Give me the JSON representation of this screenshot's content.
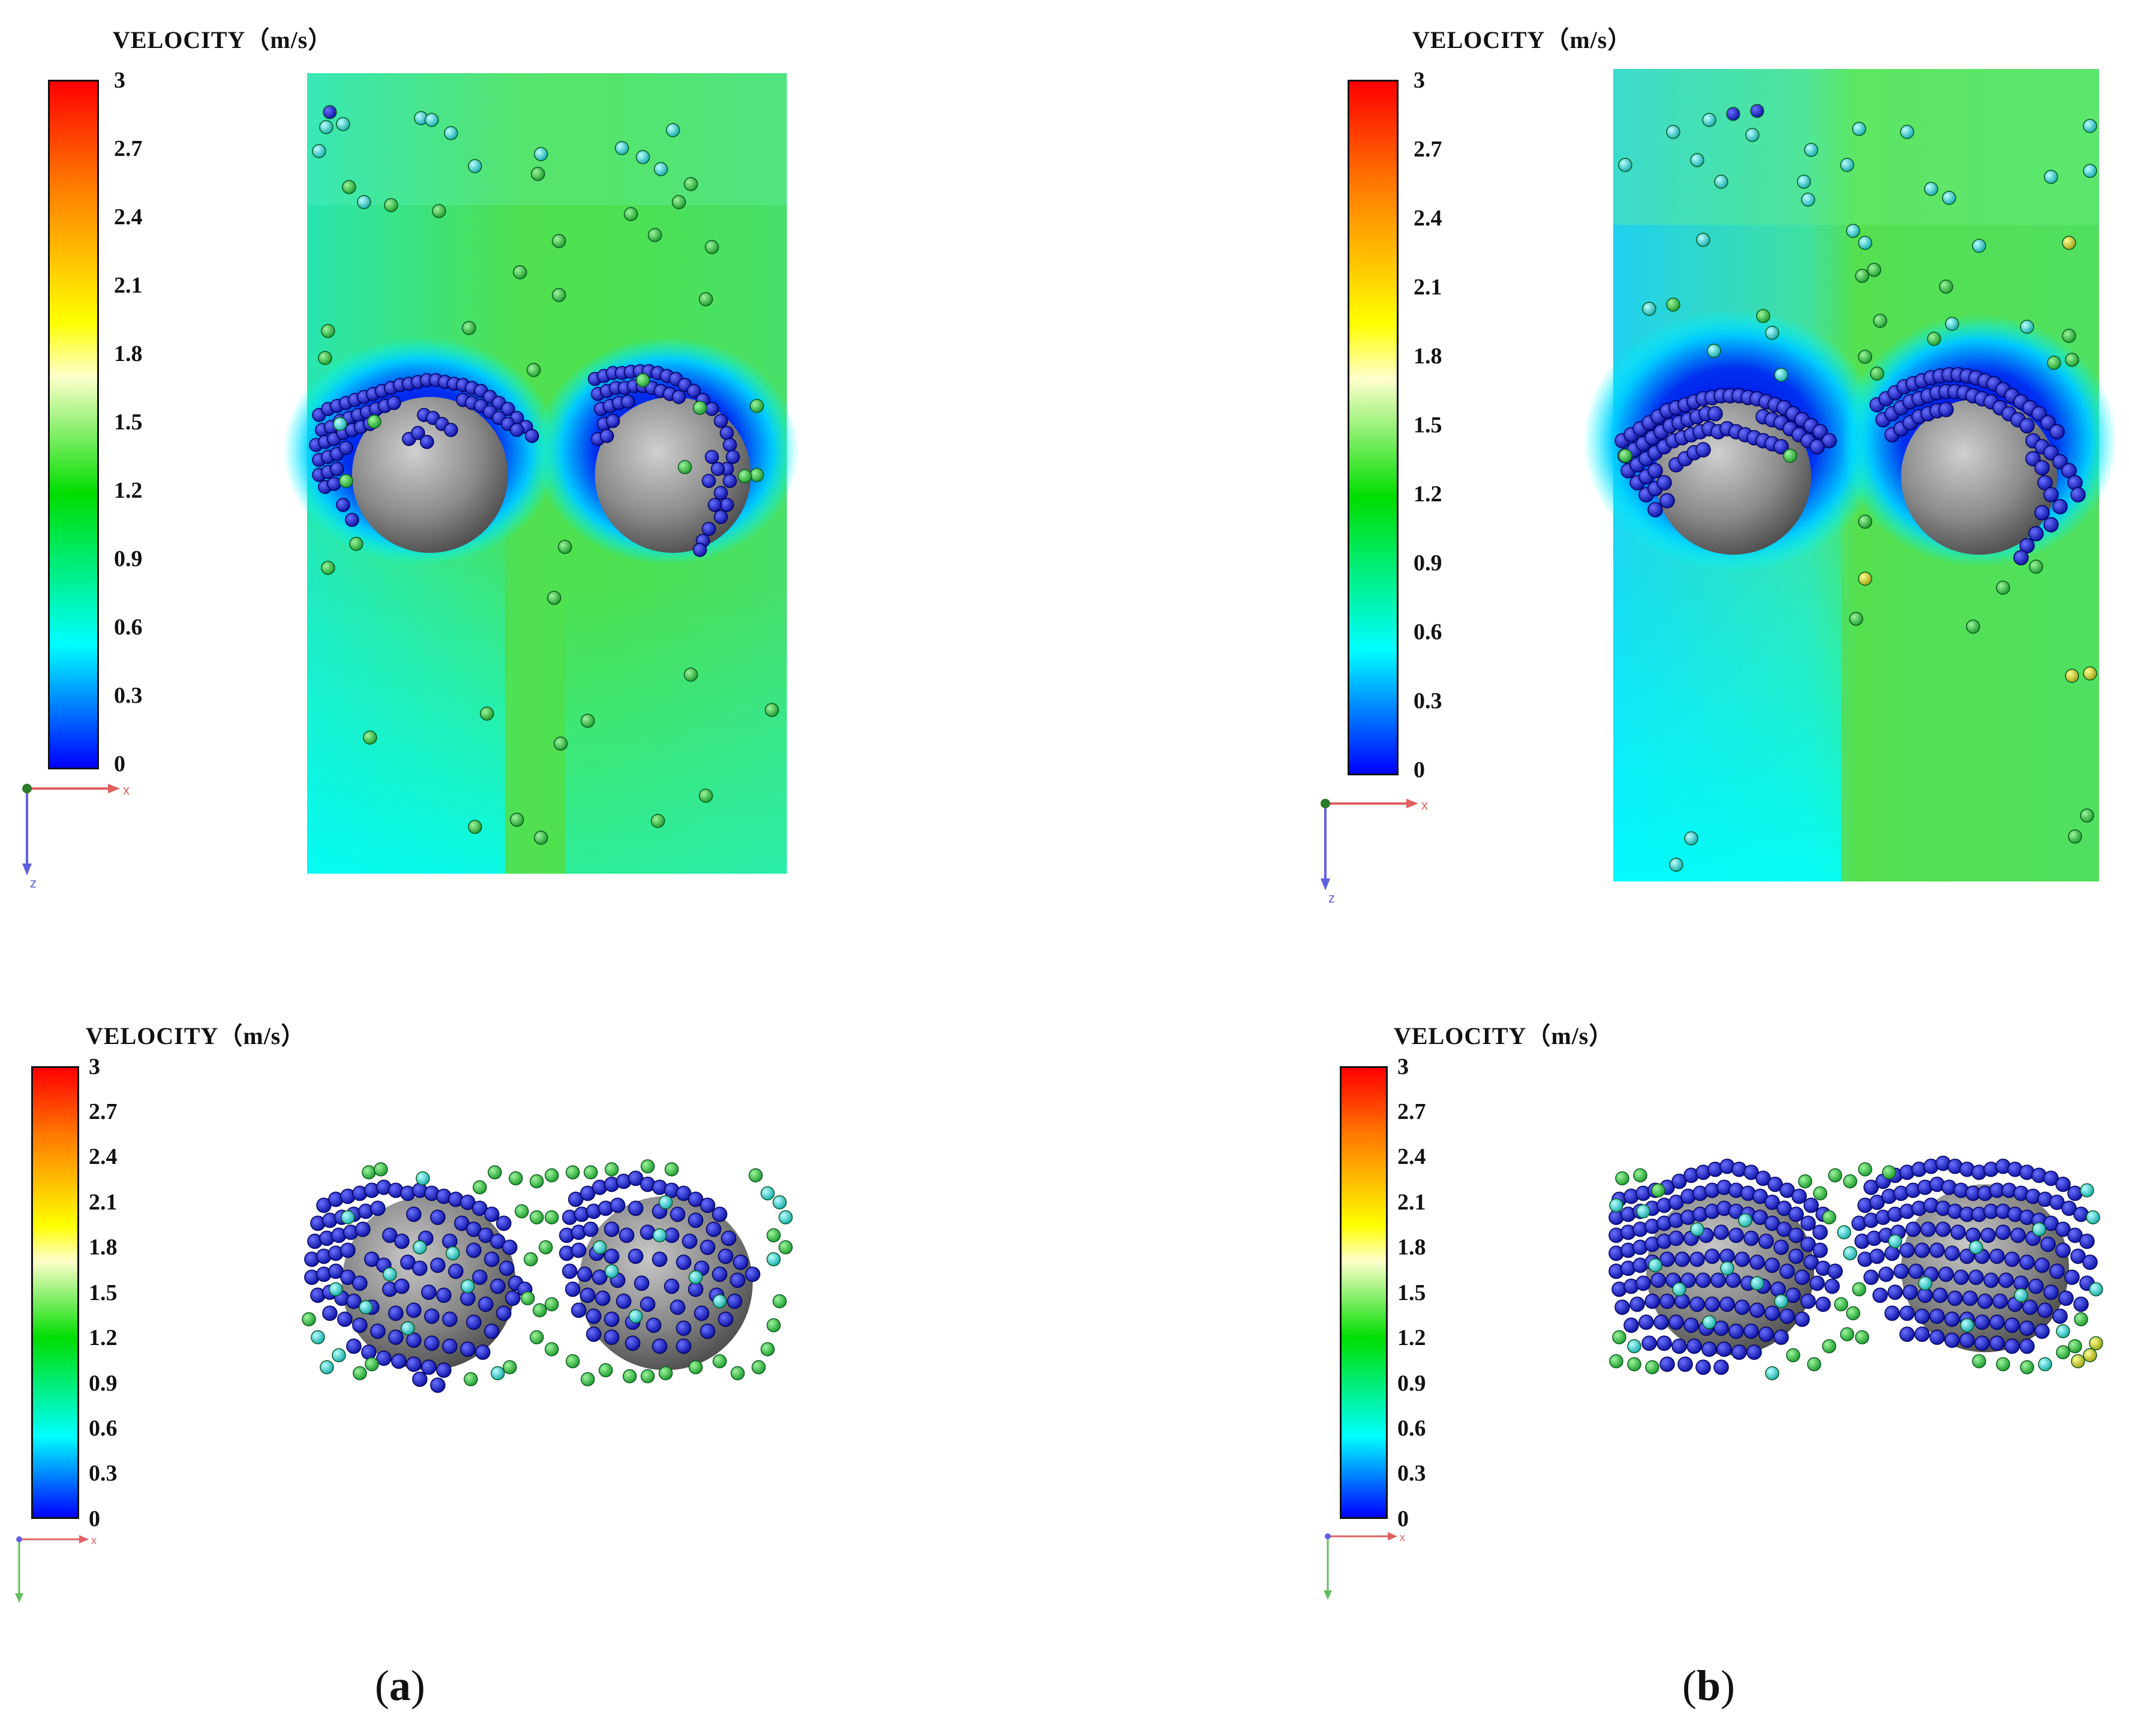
{
  "colorbar": {
    "title": "VELOCITY（m/s）",
    "ticks": [
      "3",
      "2.7",
      "2.4",
      "2.1",
      "1.8",
      "1.5",
      "1.2",
      "0.9",
      "0.6",
      "0.3",
      "0"
    ],
    "colors": [
      "#ff0000",
      "#ff8800",
      "#ffff00",
      "#00cc00",
      "#00ffff",
      "#0000ff"
    ]
  },
  "axes": {
    "x_label": "x",
    "z_label": "z"
  },
  "captions": {
    "a": "a",
    "b": "b"
  },
  "colors": {
    "field_green": "#47e05a",
    "field_cyan": "#19e6e6",
    "field_blue": "#0a14e6",
    "sphere": "#8a8a8a",
    "particle_blue": "#1a20d8"
  }
}
